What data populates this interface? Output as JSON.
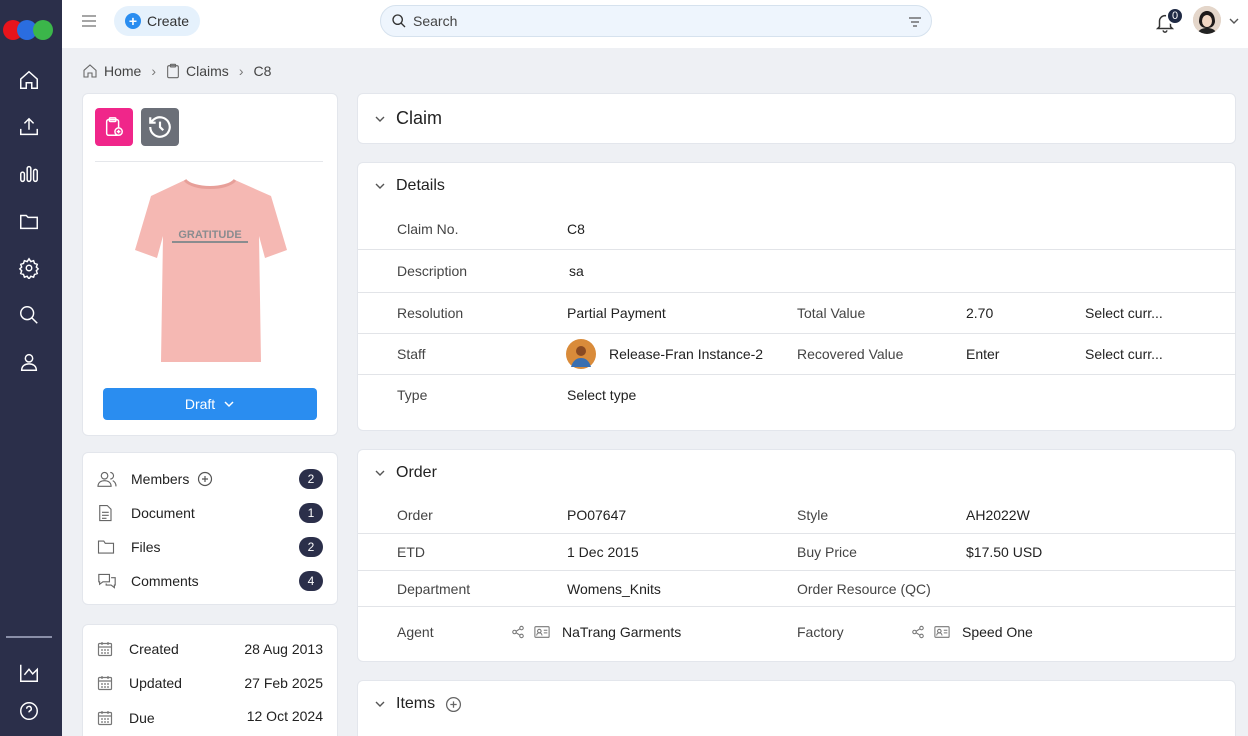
{
  "colors": {
    "sidebar": "#2b2f4a",
    "accent": "#2a8df0",
    "pink": "#f0268a",
    "gray": "#6b6f78"
  },
  "topbar": {
    "create_label": "Create",
    "search_placeholder": "Search",
    "notifications_count": "0"
  },
  "breadcrumb": {
    "home": "Home",
    "claims": "Claims",
    "current": "C8"
  },
  "product": {
    "status_label": "Draft",
    "shirt_print": "GRATITUDE"
  },
  "links": [
    {
      "label": "Members",
      "count": "2"
    },
    {
      "label": "Document",
      "count": "1"
    },
    {
      "label": "Files",
      "count": "2"
    },
    {
      "label": "Comments",
      "count": "4"
    }
  ],
  "dates": [
    {
      "label": "Created",
      "value": "28 Aug 2013"
    },
    {
      "label": "Updated",
      "value": "27 Feb 2025"
    },
    {
      "label": "Due",
      "value": "12 Oct 2024"
    }
  ],
  "claim": {
    "title": "Claim"
  },
  "details": {
    "title": "Details",
    "claim_no_label": "Claim No.",
    "claim_no": "C8",
    "description_label": "Description",
    "description": "sa",
    "resolution_label": "Resolution",
    "resolution": "Partial Payment",
    "total_value_label": "Total Value",
    "total_value": "2.70",
    "currency_placeholder": "Select curr...",
    "staff_label": "Staff",
    "staff": "Release-Fran Instance-2",
    "recovered_label": "Recovered Value",
    "recovered_placeholder": "Enter",
    "currency_placeholder_2": "Select curr...",
    "type_label": "Type",
    "type_placeholder": "Select type"
  },
  "order": {
    "title": "Order",
    "order_label": "Order",
    "order": "PO07647",
    "style_label": "Style",
    "style": "AH2022W",
    "etd_label": "ETD",
    "etd": "1 Dec 2015",
    "buy_price_label": "Buy Price",
    "buy_price": "$17.50 USD",
    "department_label": "Department",
    "department": "Womens_Knits",
    "resource_label": "Order Resource (QC)",
    "agent_label": "Agent",
    "agent": "NaTrang Garments",
    "factory_label": "Factory",
    "factory": "Speed One"
  },
  "items": {
    "title": "Items"
  }
}
